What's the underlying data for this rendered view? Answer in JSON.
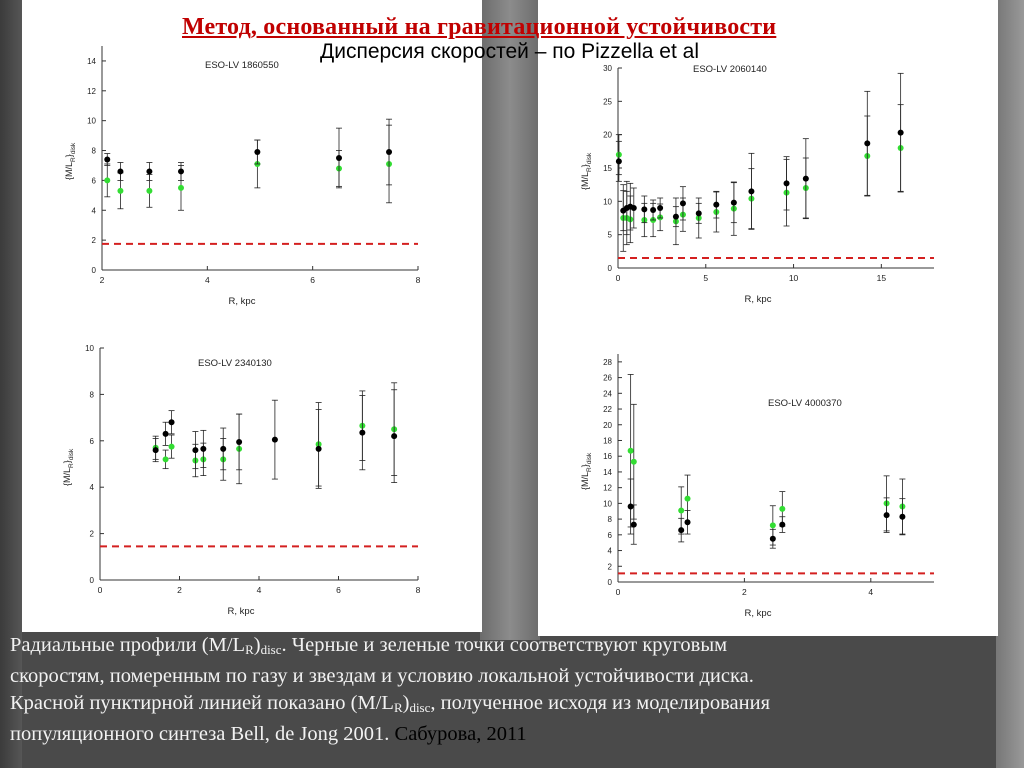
{
  "slide": {
    "title": "Метод, основанный на гравитационной устойчивости",
    "subtitle": "Дисперсия скоростей – по Pizzella et al"
  },
  "caption": {
    "line1_a": "Радиальные профили (M/L",
    "line1_b": "R",
    "line1_c": ")",
    "line1_d": "disc",
    "line1_e": ".  Черные и зеленые точки соответствуют круговым",
    "line2": "скоростям, померенным по газу и звездам и условию локальной устойчивости диска.",
    "line3_a": "Красной пунктирной линией показано (M/L",
    "line3_b": "R",
    "line3_c": ")",
    "line3_d": "disc",
    "line3_e": ", полученное исходя из моделирования",
    "line4_a": "популяционного синтеза Bell, de Jong 2001. ",
    "line4_cite": "Сабурова, 2011"
  },
  "colors": {
    "title": "#c00000",
    "black_points": "#000000",
    "green_points": "#33dd33",
    "red_dashed": "#d42020",
    "caption_text": "#f2f2f2"
  },
  "chart_data": [
    {
      "id": "eso1860550",
      "type": "scatter",
      "title": "ESO-LV 1860550",
      "xlabel": "R, kpc",
      "ylabel_main": "{M/L",
      "ylabel_sub1": "R",
      "ylabel_close": "}",
      "ylabel_sub2": "disk",
      "xlim": [
        2,
        8
      ],
      "ylim": [
        0,
        15
      ],
      "xticks": [
        2,
        4,
        6,
        8
      ],
      "yticks": [
        0,
        2,
        4,
        6,
        8,
        10,
        12,
        14
      ],
      "hline": 1.75,
      "series": [
        {
          "color": "black",
          "points": [
            {
              "x": 2.1,
              "y": 7.4,
              "err": 0.4
            },
            {
              "x": 2.35,
              "y": 6.6,
              "err": 0.6
            },
            {
              "x": 2.9,
              "y": 6.6,
              "err": 0.6
            },
            {
              "x": 3.5,
              "y": 6.6,
              "err": 0.6
            },
            {
              "x": 4.95,
              "y": 7.9,
              "err": 0.8
            },
            {
              "x": 6.5,
              "y": 7.5,
              "err": 2.0
            },
            {
              "x": 7.45,
              "y": 7.9,
              "err": 2.2
            }
          ]
        },
        {
          "color": "green",
          "points": [
            {
              "x": 2.1,
              "y": 6.0,
              "err": 1.1
            },
            {
              "x": 2.35,
              "y": 5.3,
              "err": 1.2
            },
            {
              "x": 2.9,
              "y": 5.3,
              "err": 1.1
            },
            {
              "x": 3.5,
              "y": 5.5,
              "err": 1.5
            },
            {
              "x": 4.95,
              "y": 7.1,
              "err": 1.6
            },
            {
              "x": 6.5,
              "y": 6.8,
              "err": 1.2
            },
            {
              "x": 7.45,
              "y": 7.1,
              "err": 2.6
            }
          ]
        }
      ]
    },
    {
      "id": "eso2060140",
      "type": "scatter",
      "title": "ESO-LV 2060140",
      "xlabel": "R, kpc",
      "ylabel_main": "{M/L",
      "ylabel_sub1": "R",
      "ylabel_close": "}",
      "ylabel_sub2": "disk",
      "xlim": [
        0,
        18
      ],
      "ylim": [
        0,
        30
      ],
      "xticks": [
        0,
        5,
        10,
        15
      ],
      "yticks": [
        0,
        5,
        10,
        15,
        20,
        25,
        30
      ],
      "hline": 1.5,
      "series": [
        {
          "color": "black",
          "points": [
            {
              "x": 0.05,
              "y": 16.0,
              "err": 3.0
            },
            {
              "x": 0.3,
              "y": 8.6,
              "err": 3.0
            },
            {
              "x": 0.5,
              "y": 9.0,
              "err": 4.0
            },
            {
              "x": 0.7,
              "y": 9.2,
              "err": 3.5
            },
            {
              "x": 0.9,
              "y": 9.0,
              "err": 3.0
            },
            {
              "x": 1.5,
              "y": 8.8,
              "err": 2.0
            },
            {
              "x": 2.0,
              "y": 8.7,
              "err": 1.5
            },
            {
              "x": 2.4,
              "y": 9.0,
              "err": 1.5
            },
            {
              "x": 3.3,
              "y": 7.7,
              "err": 1.5
            },
            {
              "x": 3.7,
              "y": 9.7,
              "err": 2.5
            },
            {
              "x": 4.6,
              "y": 8.2,
              "err": 1.5
            },
            {
              "x": 5.6,
              "y": 9.5,
              "err": 2.0
            },
            {
              "x": 6.6,
              "y": 9.8,
              "err": 3.0
            },
            {
              "x": 7.6,
              "y": 11.5,
              "err": 5.7
            },
            {
              "x": 9.6,
              "y": 12.7,
              "err": 4.0
            },
            {
              "x": 10.7,
              "y": 13.4,
              "err": 6.0
            },
            {
              "x": 14.2,
              "y": 18.7,
              "err": 7.8
            },
            {
              "x": 16.1,
              "y": 20.3,
              "err": 8.9
            }
          ]
        },
        {
          "color": "green",
          "points": [
            {
              "x": 0.05,
              "y": 17.0,
              "err": 3.0
            },
            {
              "x": 0.3,
              "y": 7.5,
              "err": 5.0
            },
            {
              "x": 0.5,
              "y": 7.5,
              "err": 4.0
            },
            {
              "x": 0.7,
              "y": 7.3,
              "err": 3.5
            },
            {
              "x": 1.5,
              "y": 7.2,
              "err": 2.5
            },
            {
              "x": 2.0,
              "y": 7.2,
              "err": 2.5
            },
            {
              "x": 2.4,
              "y": 7.6,
              "err": 2.0
            },
            {
              "x": 3.3,
              "y": 7.0,
              "err": 3.5
            },
            {
              "x": 3.7,
              "y": 8.0,
              "err": 2.5
            },
            {
              "x": 4.6,
              "y": 7.5,
              "err": 3.0
            },
            {
              "x": 5.6,
              "y": 8.4,
              "err": 3.0
            },
            {
              "x": 6.6,
              "y": 8.9,
              "err": 4.0
            },
            {
              "x": 7.6,
              "y": 10.4,
              "err": 4.5
            },
            {
              "x": 9.6,
              "y": 11.3,
              "err": 5.0
            },
            {
              "x": 10.7,
              "y": 12.0,
              "err": 4.5
            },
            {
              "x": 14.2,
              "y": 16.8,
              "err": 6.0
            },
            {
              "x": 16.1,
              "y": 18.0,
              "err": 6.5
            }
          ]
        }
      ]
    },
    {
      "id": "eso2340130",
      "type": "scatter",
      "title": "ESO-LV 2340130",
      "xlabel": "R, kpc",
      "ylabel_main": "{M/L",
      "ylabel_sub1": "R",
      "ylabel_close": "}",
      "ylabel_sub2": "disk",
      "xlim": [
        0,
        8
      ],
      "ylim": [
        0,
        10
      ],
      "xticks": [
        0,
        2,
        4,
        6,
        8
      ],
      "yticks": [
        0,
        2,
        4,
        6,
        8,
        10
      ],
      "hline": 1.45,
      "series": [
        {
          "color": "black",
          "points": [
            {
              "x": 1.4,
              "y": 5.6,
              "err": 0.5
            },
            {
              "x": 1.65,
              "y": 6.3,
              "err": 0.5
            },
            {
              "x": 1.8,
              "y": 6.8,
              "err": 0.5
            },
            {
              "x": 2.4,
              "y": 5.6,
              "err": 0.8
            },
            {
              "x": 2.6,
              "y": 5.65,
              "err": 0.8
            },
            {
              "x": 3.1,
              "y": 5.65,
              "err": 0.9
            },
            {
              "x": 3.5,
              "y": 5.95,
              "err": 1.2
            },
            {
              "x": 4.4,
              "y": 6.05,
              "err": 1.7
            },
            {
              "x": 5.5,
              "y": 5.65,
              "err": 1.7
            },
            {
              "x": 6.6,
              "y": 6.35,
              "err": 1.6
            },
            {
              "x": 7.4,
              "y": 6.2,
              "err": 2.0
            }
          ]
        },
        {
          "color": "green",
          "points": [
            {
              "x": 1.4,
              "y": 5.7,
              "err": 0.5
            },
            {
              "x": 1.65,
              "y": 5.2,
              "err": 0.4
            },
            {
              "x": 1.8,
              "y": 5.75,
              "err": 0.5
            },
            {
              "x": 2.4,
              "y": 5.15,
              "err": 0.7
            },
            {
              "x": 2.6,
              "y": 5.2,
              "err": 0.7
            },
            {
              "x": 3.1,
              "y": 5.2,
              "err": 0.9
            },
            {
              "x": 3.5,
              "y": 5.65,
              "err": 1.5
            },
            {
              "x": 5.5,
              "y": 5.85,
              "err": 1.8
            },
            {
              "x": 6.6,
              "y": 6.65,
              "err": 1.5
            },
            {
              "x": 7.4,
              "y": 6.5,
              "err": 2.0
            }
          ]
        }
      ]
    },
    {
      "id": "eso4000370",
      "type": "scatter",
      "title": "ESO-LV 4000370",
      "xlabel": "R, kpc",
      "ylabel_main": "{M/L",
      "ylabel_sub1": "R",
      "ylabel_close": "}",
      "ylabel_sub2": "disk",
      "xlim": [
        0,
        5
      ],
      "ylim": [
        0,
        29
      ],
      "xticks": [
        0,
        2,
        4
      ],
      "yticks": [
        0,
        2,
        4,
        6,
        8,
        10,
        12,
        14,
        16,
        18,
        20,
        22,
        24,
        26,
        28
      ],
      "hline": 1.1,
      "series": [
        {
          "color": "black",
          "points": [
            {
              "x": 0.2,
              "y": 9.6,
              "err": 3.5
            },
            {
              "x": 0.25,
              "y": 7.3,
              "err": 2.5
            },
            {
              "x": 1.0,
              "y": 6.6,
              "err": 1.5
            },
            {
              "x": 1.1,
              "y": 7.6,
              "err": 1.5
            },
            {
              "x": 2.45,
              "y": 5.5,
              "err": 1.2
            },
            {
              "x": 2.6,
              "y": 7.3,
              "err": 1.0
            },
            {
              "x": 4.25,
              "y": 8.5,
              "err": 2.2
            },
            {
              "x": 4.5,
              "y": 8.3,
              "err": 2.3
            }
          ]
        },
        {
          "color": "green",
          "points": [
            {
              "x": 0.2,
              "y": 16.7,
              "err": 9.7
            },
            {
              "x": 0.25,
              "y": 15.3,
              "err": 7.3
            },
            {
              "x": 1.0,
              "y": 9.1,
              "err": 3.0
            },
            {
              "x": 1.1,
              "y": 10.6,
              "err": 3.0
            },
            {
              "x": 2.45,
              "y": 7.2,
              "err": 2.5
            },
            {
              "x": 2.6,
              "y": 9.3,
              "err": 2.2
            },
            {
              "x": 4.25,
              "y": 10.0,
              "err": 3.5
            },
            {
              "x": 4.5,
              "y": 9.6,
              "err": 3.5
            }
          ]
        }
      ]
    }
  ]
}
